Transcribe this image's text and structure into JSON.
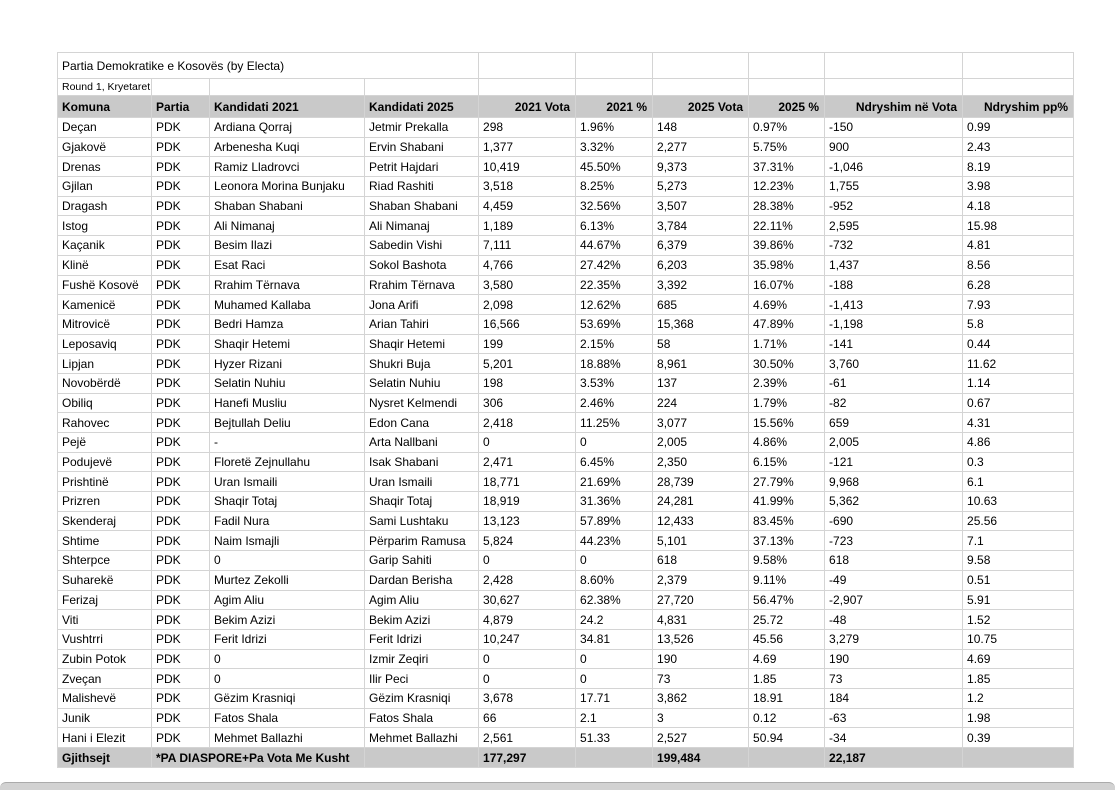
{
  "table": {
    "title": "Partia Demokratike e Kosovës (by Electa)",
    "subtitle": "Round 1, Kryetaret",
    "columns": [
      "Komuna",
      "Partia",
      "Kandidati 2021",
      "Kandidati 2025",
      "2021 Vota",
      "2021 %",
      "2025 Vota",
      "2025 %",
      "Ndryshim në Vota",
      "Ndryshim pp%"
    ],
    "rows": [
      [
        "Deçan",
        "PDK",
        "Ardiana Qorraj",
        "Jetmir Prekalla",
        "298",
        "1.96%",
        "148",
        "0.97%",
        "-150",
        "0.99"
      ],
      [
        "Gjakovë",
        "PDK",
        "Arbenesha Kuqi",
        "Ervin Shabani",
        "1,377",
        "3.32%",
        "2,277",
        "5.75%",
        "900",
        "2.43"
      ],
      [
        "Drenas",
        "PDK",
        "Ramiz Lladrovci",
        "Petrit Hajdari",
        "10,419",
        "45.50%",
        "9,373",
        "37.31%",
        "-1,046",
        "8.19"
      ],
      [
        "Gjilan",
        "PDK",
        "Leonora Morina Bunjaku",
        "Riad Rashiti",
        "3,518",
        "8.25%",
        "5,273",
        "12.23%",
        "1,755",
        "3.98"
      ],
      [
        "Dragash",
        "PDK",
        "Shaban Shabani",
        "Shaban Shabani",
        "4,459",
        "32.56%",
        "3,507",
        "28.38%",
        "-952",
        "4.18"
      ],
      [
        "Istog",
        "PDK",
        "Ali Nimanaj",
        "Ali Nimanaj",
        "1,189",
        "6.13%",
        "3,784",
        "22.11%",
        "2,595",
        "15.98"
      ],
      [
        "Kaçanik",
        "PDK",
        "Besim Ilazi",
        "Sabedin Vishi",
        "7,111",
        "44.67%",
        "6,379",
        "39.86%",
        "-732",
        "4.81"
      ],
      [
        "Klinë",
        "PDK",
        "Esat Raci",
        "Sokol Bashota",
        "4,766",
        "27.42%",
        "6,203",
        "35.98%",
        "1,437",
        "8.56"
      ],
      [
        "Fushë Kosovë",
        "PDK",
        "Rrahim Tërnava",
        "Rrahim Tërnava",
        "3,580",
        "22.35%",
        "3,392",
        "16.07%",
        "-188",
        "6.28"
      ],
      [
        "Kamenicë",
        "PDK",
        "Muhamed Kallaba",
        "Jona Arifi",
        "2,098",
        "12.62%",
        "685",
        "4.69%",
        "-1,413",
        "7.93"
      ],
      [
        "Mitrovicë",
        "PDK",
        "Bedri Hamza",
        "Arian Tahiri",
        "16,566",
        "53.69%",
        "15,368",
        "47.89%",
        "-1,198",
        "5.8"
      ],
      [
        "Leposaviq",
        "PDK",
        "Shaqir Hetemi",
        "Shaqir Hetemi",
        "199",
        "2.15%",
        "58",
        "1.71%",
        "-141",
        "0.44"
      ],
      [
        "Lipjan",
        "PDK",
        "Hyzer Rizani",
        "Shukri Buja",
        "5,201",
        "18.88%",
        "8,961",
        "30.50%",
        "3,760",
        "11.62"
      ],
      [
        "Novobërdë",
        "PDK",
        "Selatin Nuhiu",
        "Selatin Nuhiu",
        "198",
        "3.53%",
        "137",
        "2.39%",
        "-61",
        "1.14"
      ],
      [
        "Obiliq",
        "PDK",
        "Hanefi Musliu",
        "Nysret Kelmendi",
        "306",
        "2.46%",
        "224",
        "1.79%",
        "-82",
        "0.67"
      ],
      [
        "Rahovec",
        "PDK",
        "Bejtullah Deliu",
        "Edon Cana",
        "2,418",
        "11.25%",
        "3,077",
        "15.56%",
        "659",
        "4.31"
      ],
      [
        "Pejë",
        "PDK",
        "-",
        "Arta Nallbani",
        "0",
        "0",
        "2,005",
        "4.86%",
        "2,005",
        "4.86"
      ],
      [
        "Podujevë",
        "PDK",
        "Floretë Zejnullahu",
        "Isak Shabani",
        "2,471",
        "6.45%",
        "2,350",
        "6.15%",
        "-121",
        "0.3"
      ],
      [
        "Prishtinë",
        "PDK",
        "Uran Ismaili",
        "Uran Ismaili",
        "18,771",
        "21.69%",
        "28,739",
        "27.79%",
        "9,968",
        "6.1"
      ],
      [
        "Prizren",
        "PDK",
        "Shaqir Totaj",
        "Shaqir Totaj",
        "18,919",
        "31.36%",
        "24,281",
        "41.99%",
        "5,362",
        "10.63"
      ],
      [
        "Skenderaj",
        "PDK",
        "Fadil Nura",
        "Sami Lushtaku",
        "13,123",
        "57.89%",
        "12,433",
        "83.45%",
        "-690",
        "25.56"
      ],
      [
        "Shtime",
        "PDK",
        "Naim Ismajli",
        "Përparim Ramusa",
        "5,824",
        "44.23%",
        "5,101",
        "37.13%",
        "-723",
        "7.1"
      ],
      [
        "Shterpce",
        "PDK",
        "0",
        "Garip Sahiti",
        "0",
        "0",
        "618",
        "9.58%",
        "618",
        "9.58"
      ],
      [
        "Suharekë",
        "PDK",
        "Murtez Zekolli",
        "Dardan Berisha",
        "2,428",
        "8.60%",
        "2,379",
        "9.11%",
        "-49",
        "0.51"
      ],
      [
        "Ferizaj",
        "PDK",
        "Agim Aliu",
        "Agim Aliu",
        "30,627",
        "62.38%",
        "27,720",
        "56.47%",
        "-2,907",
        "5.91"
      ],
      [
        "Viti",
        "PDK",
        "Bekim Azizi",
        "Bekim Azizi",
        "4,879",
        "24.2",
        "4,831",
        "25.72",
        "-48",
        "1.52"
      ],
      [
        "Vushtrri",
        "PDK",
        "Ferit Idrizi",
        "Ferit Idrizi",
        "10,247",
        "34.81",
        "13,526",
        "45.56",
        "3,279",
        "10.75"
      ],
      [
        "Zubin Potok",
        "PDK",
        "0",
        "Izmir Zeqiri",
        "0",
        "0",
        "190",
        "4.69",
        "190",
        "4.69"
      ],
      [
        "Zveçan",
        "PDK",
        "0",
        "Ilir Peci",
        "0",
        "0",
        "73",
        "1.85",
        "73",
        "1.85"
      ],
      [
        "Malishevë",
        "PDK",
        "Gëzim Krasniqi",
        "Gëzim Krasniqi",
        "3,678",
        "17.71",
        "3,862",
        "18.91",
        "184",
        "1.2"
      ],
      [
        "Junik",
        "PDK",
        "Fatos Shala",
        "Fatos Shala",
        "66",
        "2.1",
        "3",
        "0.12",
        "-63",
        "1.98"
      ],
      [
        "Hani i Elezit",
        "PDK",
        "Mehmet Ballazhi",
        "Mehmet Ballazhi",
        "2,561",
        "51.33",
        "2,527",
        "50.94",
        "-34",
        "0.39"
      ]
    ],
    "footer": {
      "label": "Gjithsejt",
      "note": "*PA DIASPORE+Pa Vota Me Kusht",
      "vota_2021": "177,297",
      "vota_2025": "199,484",
      "ndryshim_vota": "22,187"
    }
  },
  "colors": {
    "header_background": "#c9c9c9",
    "footer_background": "#c9c9c9",
    "gridline": "#d4d4d4",
    "text": "#000000",
    "bottom_bar": "#d2d2d2"
  }
}
